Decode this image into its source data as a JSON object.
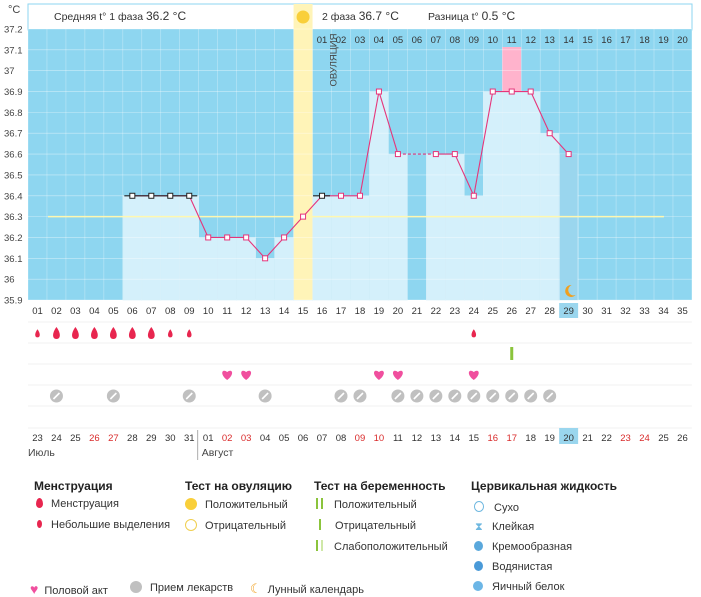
{
  "header": {
    "phase1": "Средняя t° 1 фаза",
    "phase1_value": "36.2 °C",
    "phase2": "2 фаза",
    "phase2_value": "36.7 °C",
    "diff": "Разница t°",
    "diff_value": "0.5 °C",
    "unit": "°C",
    "ovulation": "ОВУЛЯЦИЯ"
  },
  "chart_data": {
    "type": "bar",
    "ylim": [
      35.9,
      37.2
    ],
    "y_ticks": [
      "35.9",
      "36",
      "36.1",
      "36.2",
      "36.3",
      "36.4",
      "36.5",
      "36.6",
      "36.7",
      "36.8",
      "36.9",
      "37",
      "37.1",
      "37.2"
    ],
    "cycle_days": [
      "01",
      "02",
      "03",
      "04",
      "05",
      "06",
      "07",
      "08",
      "09",
      "10",
      "11",
      "12",
      "13",
      "14",
      "15",
      "16",
      "17",
      "18",
      "19",
      "20",
      "21",
      "22",
      "23",
      "24",
      "25",
      "26",
      "27",
      "28",
      "29",
      "30",
      "31",
      "32",
      "33",
      "34",
      "35"
    ],
    "upper_days": [
      "01",
      "02",
      "03",
      "04",
      "05",
      "06",
      "07",
      "08",
      "09",
      "10",
      "11",
      "12",
      "13",
      "14",
      "15",
      "16",
      "17",
      "18",
      "19",
      "20"
    ],
    "temperatures": [
      {
        "day": 6,
        "t": 36.4
      },
      {
        "day": 7,
        "t": 36.4
      },
      {
        "day": 8,
        "t": 36.4
      },
      {
        "day": 9,
        "t": 36.4
      },
      {
        "day": 10,
        "t": 36.2
      },
      {
        "day": 11,
        "t": 36.2
      },
      {
        "day": 12,
        "t": 36.2
      },
      {
        "day": 13,
        "t": 36.1
      },
      {
        "day": 14,
        "t": 36.2
      },
      {
        "day": 15,
        "t": 36.3
      },
      {
        "day": 16,
        "t": 36.4
      },
      {
        "day": 17,
        "t": 36.4
      },
      {
        "day": 18,
        "t": 36.4
      },
      {
        "day": 19,
        "t": 36.9
      },
      {
        "day": 20,
        "t": 36.6
      },
      {
        "day": 22,
        "t": 36.6
      },
      {
        "day": 23,
        "t": 36.6
      },
      {
        "day": 24,
        "t": 36.4
      },
      {
        "day": 25,
        "t": 36.9
      },
      {
        "day": 26,
        "t": 36.9
      },
      {
        "day": 27,
        "t": 36.9
      },
      {
        "day": 28,
        "t": 36.7
      },
      {
        "day": 29,
        "t": 36.6
      }
    ],
    "coverline": 36.3,
    "ovulation_day": 15,
    "highlight_day": 26,
    "current_day": 29,
    "menstruation": [
      {
        "day": 1,
        "size": "small"
      },
      {
        "day": 2,
        "size": "large"
      },
      {
        "day": 3,
        "size": "large"
      },
      {
        "day": 4,
        "size": "large"
      },
      {
        "day": 5,
        "size": "large"
      },
      {
        "day": 6,
        "size": "large"
      },
      {
        "day": 7,
        "size": "large"
      },
      {
        "day": 8,
        "size": "small"
      },
      {
        "day": 9,
        "size": "small"
      },
      {
        "day": 24,
        "size": "small"
      }
    ],
    "pregnancy_tests": [
      {
        "day": 26,
        "result": "positive"
      }
    ],
    "intercourse": [
      11,
      12,
      19,
      20,
      24
    ],
    "medication": [
      2,
      5,
      9,
      13,
      17,
      18,
      20,
      21,
      22,
      23,
      24,
      25,
      26,
      27,
      28
    ],
    "moon": [
      29
    ],
    "dates": [
      "23",
      "24",
      "25",
      "26",
      "27",
      "28",
      "29",
      "30",
      "31",
      "01",
      "02",
      "03",
      "04",
      "05",
      "06",
      "07",
      "08",
      "09",
      "10",
      "11",
      "12",
      "13",
      "14",
      "15",
      "16",
      "17",
      "18",
      "19",
      "20",
      "21",
      "22",
      "23",
      "24",
      "25",
      "26"
    ],
    "date_red": [
      4,
      5,
      11,
      12,
      18,
      19,
      25,
      26,
      32,
      33
    ],
    "month_july": "Июль",
    "month_august": "Август",
    "colors": {
      "sky": "#8ed6f0",
      "bar": "#d4f0fb",
      "line": "#e6357a",
      "drop": "#e8264f",
      "heart": "#f04f9e",
      "pill": "#c0c0c0",
      "ovu": "#fff4b8",
      "pink": "#ffb3cc",
      "cur": "#9ad6ee",
      "moon": "#f0a020",
      "green": "#8bc43c"
    }
  },
  "legend": {
    "menstr_title": "Менструация",
    "menstr_1": "Менструация",
    "menstr_2": "Небольшие выделения",
    "ovu_title": "Тест на овуляцию",
    "ovu_1": "Положительный",
    "ovu_2": "Отрицательный",
    "preg_title": "Тест на беременность",
    "preg_1": "Положительный",
    "preg_2": "Отрицательный",
    "preg_3": "Слабоположительный",
    "cerv_title": "Цервикальная жидкость",
    "cerv_1": "Сухо",
    "cerv_2": "Клейкая",
    "cerv_3": "Кремообразная",
    "cerv_4": "Водянистая",
    "cerv_5": "Яичный белок",
    "sex": "Половой акт",
    "meds": "Прием лекарств",
    "moon": "Лунный календарь"
  }
}
